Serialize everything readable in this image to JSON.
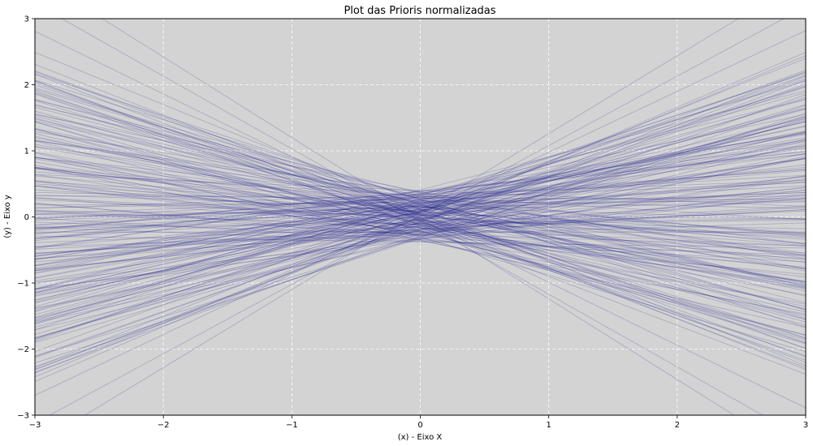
{
  "chart_data": {
    "type": "line",
    "title": "Plot das Prioris normalizadas",
    "xlabel": "(x) - Eixo X",
    "ylabel": "(y) - Eixo y",
    "xlim": [
      -3,
      3
    ],
    "ylim": [
      -3,
      3
    ],
    "x_ticks": [
      -3,
      -2,
      -1,
      0,
      1,
      2,
      3
    ],
    "y_ticks": [
      -3,
      -2,
      -1,
      0,
      1,
      2,
      3
    ],
    "x_tick_labels": [
      "−3",
      "−2",
      "−1",
      "0",
      "1",
      "2",
      "3"
    ],
    "y_tick_labels": [
      "−3",
      "−2",
      "−1",
      "0",
      "1",
      "2",
      "3"
    ],
    "grid": true,
    "grid_style": "dashed",
    "background_color": "#d3d3d3",
    "line_color": "#1f1f8f",
    "line_opacity": 0.22,
    "series": [
      {
        "intercept": 0.12,
        "slope": 0.42
      },
      {
        "intercept": -0.05,
        "slope": -0.31
      },
      {
        "intercept": 0.21,
        "slope": 0.18
      },
      {
        "intercept": -0.18,
        "slope": 0.55
      },
      {
        "intercept": 0.03,
        "slope": -0.62
      },
      {
        "intercept": 0.34,
        "slope": 0.07
      },
      {
        "intercept": -0.27,
        "slope": -0.12
      },
      {
        "intercept": 0.09,
        "slope": 0.71
      },
      {
        "intercept": -0.11,
        "slope": -0.48
      },
      {
        "intercept": 0.26,
        "slope": 0.33
      },
      {
        "intercept": -0.33,
        "slope": 0.22
      },
      {
        "intercept": 0.15,
        "slope": -0.25
      },
      {
        "intercept": -0.02,
        "slope": 0.61
      },
      {
        "intercept": 0.4,
        "slope": -0.08
      },
      {
        "intercept": -0.21,
        "slope": -0.55
      },
      {
        "intercept": 0.07,
        "slope": 0.27
      },
      {
        "intercept": -0.14,
        "slope": 0.14
      },
      {
        "intercept": 0.22,
        "slope": -0.41
      },
      {
        "intercept": 0.0,
        "slope": 0.83
      },
      {
        "intercept": -0.38,
        "slope": -0.03
      },
      {
        "intercept": 0.18,
        "slope": 0.49
      },
      {
        "intercept": -0.06,
        "slope": -0.74
      },
      {
        "intercept": 0.3,
        "slope": 0.11
      },
      {
        "intercept": -0.25,
        "slope": 0.38
      },
      {
        "intercept": 0.11,
        "slope": -0.17
      },
      {
        "intercept": -0.09,
        "slope": 0.02
      },
      {
        "intercept": 0.19,
        "slope": -0.58
      },
      {
        "intercept": -0.29,
        "slope": 0.66
      },
      {
        "intercept": 0.05,
        "slope": -0.35
      },
      {
        "intercept": 0.36,
        "slope": 0.24
      },
      {
        "intercept": -0.16,
        "slope": -0.21
      },
      {
        "intercept": 0.08,
        "slope": 0.52
      },
      {
        "intercept": -0.01,
        "slope": -0.09
      },
      {
        "intercept": 0.24,
        "slope": 0.35
      },
      {
        "intercept": -0.35,
        "slope": -0.44
      },
      {
        "intercept": 0.14,
        "slope": 0.05
      },
      {
        "intercept": -0.08,
        "slope": 0.76
      },
      {
        "intercept": 0.29,
        "slope": -0.29
      },
      {
        "intercept": -0.2,
        "slope": 0.16
      },
      {
        "intercept": 0.02,
        "slope": -0.67
      },
      {
        "intercept": 0.17,
        "slope": 0.44
      },
      {
        "intercept": -0.13,
        "slope": -0.14
      },
      {
        "intercept": 0.32,
        "slope": 0.58
      },
      {
        "intercept": -0.23,
        "slope": -0.52
      },
      {
        "intercept": 0.1,
        "slope": 0.09
      },
      {
        "intercept": -0.04,
        "slope": 0.31
      },
      {
        "intercept": 0.25,
        "slope": -0.04
      },
      {
        "intercept": -0.3,
        "slope": 0.47
      },
      {
        "intercept": 0.06,
        "slope": -0.38
      },
      {
        "intercept": 0.38,
        "slope": 0.19
      },
      {
        "intercept": -0.17,
        "slope": -0.27
      },
      {
        "intercept": 0.13,
        "slope": 0.67
      },
      {
        "intercept": -0.07,
        "slope": -0.71
      },
      {
        "intercept": 0.2,
        "slope": 0.28
      },
      {
        "intercept": -0.26,
        "slope": -0.06
      },
      {
        "intercept": 0.04,
        "slope": 0.12
      },
      {
        "intercept": 0.31,
        "slope": -0.46
      },
      {
        "intercept": -0.19,
        "slope": 0.57
      },
      {
        "intercept": 0.16,
        "slope": -0.19
      },
      {
        "intercept": -0.03,
        "slope": 0.39
      },
      {
        "intercept": 0.27,
        "slope": -0.6
      },
      {
        "intercept": -0.34,
        "slope": 0.25
      },
      {
        "intercept": 0.08,
        "slope": -0.11
      },
      {
        "intercept": -0.12,
        "slope": 0.73
      },
      {
        "intercept": 0.23,
        "slope": 0.03
      },
      {
        "intercept": -0.1,
        "slope": -0.36
      },
      {
        "intercept": 0.35,
        "slope": 0.4
      },
      {
        "intercept": -0.22,
        "slope": -0.23
      },
      {
        "intercept": 0.01,
        "slope": 0.2
      },
      {
        "intercept": 0.19,
        "slope": -0.53
      },
      {
        "intercept": -0.15,
        "slope": 0.08
      },
      {
        "intercept": 0.28,
        "slope": 0.63
      },
      {
        "intercept": -0.28,
        "slope": -0.16
      },
      {
        "intercept": 0.12,
        "slope": -0.79
      },
      {
        "intercept": -0.05,
        "slope": 0.5
      },
      {
        "intercept": 0.33,
        "slope": -0.32
      },
      {
        "intercept": -0.24,
        "slope": 0.13
      },
      {
        "intercept": 0.07,
        "slope": 0.36
      },
      {
        "intercept": -0.09,
        "slope": -0.45
      },
      {
        "intercept": 0.21,
        "slope": 0.01
      },
      {
        "intercept": -0.31,
        "slope": 0.6
      },
      {
        "intercept": 0.15,
        "slope": -0.13
      },
      {
        "intercept": -0.02,
        "slope": -0.63
      },
      {
        "intercept": 0.39,
        "slope": 0.29
      },
      {
        "intercept": -0.18,
        "slope": 0.21
      },
      {
        "intercept": 0.03,
        "slope": -0.24
      },
      {
        "intercept": 0.26,
        "slope": 0.54
      },
      {
        "intercept": -0.11,
        "slope": -0.05
      },
      {
        "intercept": 0.09,
        "slope": 0.45
      },
      {
        "intercept": -0.36,
        "slope": -0.37
      },
      {
        "intercept": 0.17,
        "slope": 0.1
      },
      {
        "intercept": -0.06,
        "slope": 0.69
      },
      {
        "intercept": 0.3,
        "slope": -0.2
      },
      {
        "intercept": -0.21,
        "slope": -0.57
      },
      {
        "intercept": 0.05,
        "slope": 0.17
      },
      {
        "intercept": 0.22,
        "slope": -0.42
      },
      {
        "intercept": -0.14,
        "slope": 0.34
      },
      {
        "intercept": 0.11,
        "slope": -0.7
      },
      {
        "intercept": -0.27,
        "slope": 0.06
      },
      {
        "intercept": 0.34,
        "slope": 0.48
      },
      {
        "intercept": -0.01,
        "slope": -0.1
      },
      {
        "intercept": 0.18,
        "slope": 0.26
      },
      {
        "intercept": -0.32,
        "slope": -0.49
      },
      {
        "intercept": 0.06,
        "slope": 0.78
      },
      {
        "intercept": -0.16,
        "slope": -0.3
      },
      {
        "intercept": 0.27,
        "slope": 0.15
      },
      {
        "intercept": -0.04,
        "slope": -0.6
      },
      {
        "intercept": 0.14,
        "slope": 0.41
      },
      {
        "intercept": -0.23,
        "slope": 0.0
      },
      {
        "intercept": 0.37,
        "slope": -0.26
      },
      {
        "intercept": -0.08,
        "slope": 0.53
      },
      {
        "intercept": 0.02,
        "slope": -0.15
      },
      {
        "intercept": 0.24,
        "slope": 0.65
      },
      {
        "intercept": -0.29,
        "slope": -0.4
      },
      {
        "intercept": 0.1,
        "slope": 0.23
      },
      {
        "intercept": -0.12,
        "slope": -0.66
      },
      {
        "intercept": 0.31,
        "slope": 0.32
      },
      {
        "intercept": -0.19,
        "slope": 0.1
      },
      {
        "intercept": 0.04,
        "slope": -0.34
      },
      {
        "intercept": 0.2,
        "slope": 0.59
      },
      {
        "intercept": -0.37,
        "slope": -0.07
      },
      {
        "intercept": 0.13,
        "slope": -0.51
      },
      {
        "intercept": -0.03,
        "slope": 0.37
      },
      {
        "intercept": 0.29,
        "slope": -0.01
      },
      {
        "intercept": -0.25,
        "slope": 0.7
      },
      {
        "intercept": 0.08,
        "slope": -0.22
      },
      {
        "intercept": -0.1,
        "slope": 0.18
      },
      {
        "intercept": 0.36,
        "slope": -0.47
      },
      {
        "intercept": -0.2,
        "slope": 0.46
      },
      {
        "intercept": 0.0,
        "slope": -0.77
      },
      {
        "intercept": 0.16,
        "slope": 0.3
      },
      {
        "intercept": -0.33,
        "slope": -0.18
      },
      {
        "intercept": 0.23,
        "slope": 0.62
      },
      {
        "intercept": -0.07,
        "slope": -0.43
      },
      {
        "intercept": 0.11,
        "slope": 0.04
      },
      {
        "intercept": -0.15,
        "slope": 0.56
      },
      {
        "intercept": 0.32,
        "slope": -0.12
      },
      {
        "intercept": -0.02,
        "slope": -0.54
      },
      {
        "intercept": 0.19,
        "slope": 0.37
      },
      {
        "intercept": -0.26,
        "slope": 0.28
      },
      {
        "intercept": 0.06,
        "slope": -0.28
      },
      {
        "intercept": 0.41,
        "slope": 0.5
      },
      {
        "intercept": -0.13,
        "slope": -0.68
      },
      {
        "intercept": 0.14,
        "slope": 0.13
      },
      {
        "intercept": -0.34,
        "slope": 0.42
      },
      {
        "intercept": 0.03,
        "slope": -0.02
      },
      {
        "intercept": 0.25,
        "slope": -0.64
      },
      {
        "intercept": -0.09,
        "slope": 0.74
      },
      {
        "intercept": 0.17,
        "slope": -0.33
      },
      {
        "intercept": -0.22,
        "slope": 0.19
      },
      {
        "intercept": 0.1,
        "slope": 0.51
      },
      {
        "intercept": -0.05,
        "slope": -0.2
      },
      {
        "intercept": 0.28,
        "slope": 0.08
      },
      {
        "intercept": -0.3,
        "slope": -0.58
      },
      {
        "intercept": 0.07,
        "slope": 0.64
      },
      {
        "intercept": -0.17,
        "slope": -0.09
      },
      {
        "intercept": 0.33,
        "slope": 0.22
      },
      {
        "intercept": -0.01,
        "slope": 0.43
      },
      {
        "intercept": 0.2,
        "slope": -0.5
      },
      {
        "intercept": -0.24,
        "slope": -0.26
      },
      {
        "intercept": 0.12,
        "slope": 0.35
      },
      {
        "intercept": -0.11,
        "slope": 0.02
      },
      {
        "intercept": 0.38,
        "slope": -0.39
      },
      {
        "intercept": -0.07,
        "slope": 0.68
      },
      {
        "intercept": 0.04,
        "slope": -0.72
      },
      {
        "intercept": 0.22,
        "slope": 0.16
      },
      {
        "intercept": -0.28,
        "slope": 0.3
      },
      {
        "intercept": 0.15,
        "slope": -0.06
      },
      {
        "intercept": -0.04,
        "slope": 0.58
      },
      {
        "intercept": 0.27,
        "slope": -0.56
      },
      {
        "intercept": -0.19,
        "slope": 0.12
      },
      {
        "intercept": 0.09,
        "slope": 0.45
      },
      {
        "intercept": -0.13,
        "slope": -0.32
      },
      {
        "intercept": 0.35,
        "slope": 0.27
      },
      {
        "intercept": -0.35,
        "slope": -0.11
      },
      {
        "intercept": 0.01,
        "slope": 0.81
      },
      {
        "intercept": 0.18,
        "slope": -0.46
      },
      {
        "intercept": -0.1,
        "slope": 0.24
      },
      {
        "intercept": 0.24,
        "slope": -0.17
      },
      {
        "intercept": -0.21,
        "slope": 0.39
      },
      {
        "intercept": 0.05,
        "slope": -0.65
      },
      {
        "intercept": 0.3,
        "slope": 0.14
      },
      {
        "intercept": -0.06,
        "slope": -0.04
      },
      {
        "intercept": 0.13,
        "slope": 0.55
      },
      {
        "intercept": -0.27,
        "slope": -0.35
      },
      {
        "intercept": 0.21,
        "slope": 0.33
      },
      {
        "intercept": -0.03,
        "slope": -0.52
      },
      {
        "intercept": 0.16,
        "slope": 0.07
      },
      {
        "intercept": -0.32,
        "slope": 0.63
      },
      {
        "intercept": 0.08,
        "slope": -0.14
      },
      {
        "intercept": 0.39,
        "slope": 0.2
      },
      {
        "intercept": -0.16,
        "slope": -0.74
      },
      {
        "intercept": 0.02,
        "slope": 0.29
      },
      {
        "intercept": 0.26,
        "slope": -0.27
      },
      {
        "intercept": -0.12,
        "slope": 0.47
      },
      {
        "intercept": 0.11,
        "slope": -0.41
      },
      {
        "intercept": -0.22,
        "slope": 0.11
      },
      {
        "intercept": 0.03,
        "slope": 1.05
      },
      {
        "intercept": -0.07,
        "slope": -1.1
      },
      {
        "intercept": 0.08,
        "slope": 1.18
      },
      {
        "intercept": -0.02,
        "slope": -1.22
      },
      {
        "intercept": 0.06,
        "slope": 0.92
      },
      {
        "intercept": -0.04,
        "slope": -0.95
      }
    ]
  }
}
